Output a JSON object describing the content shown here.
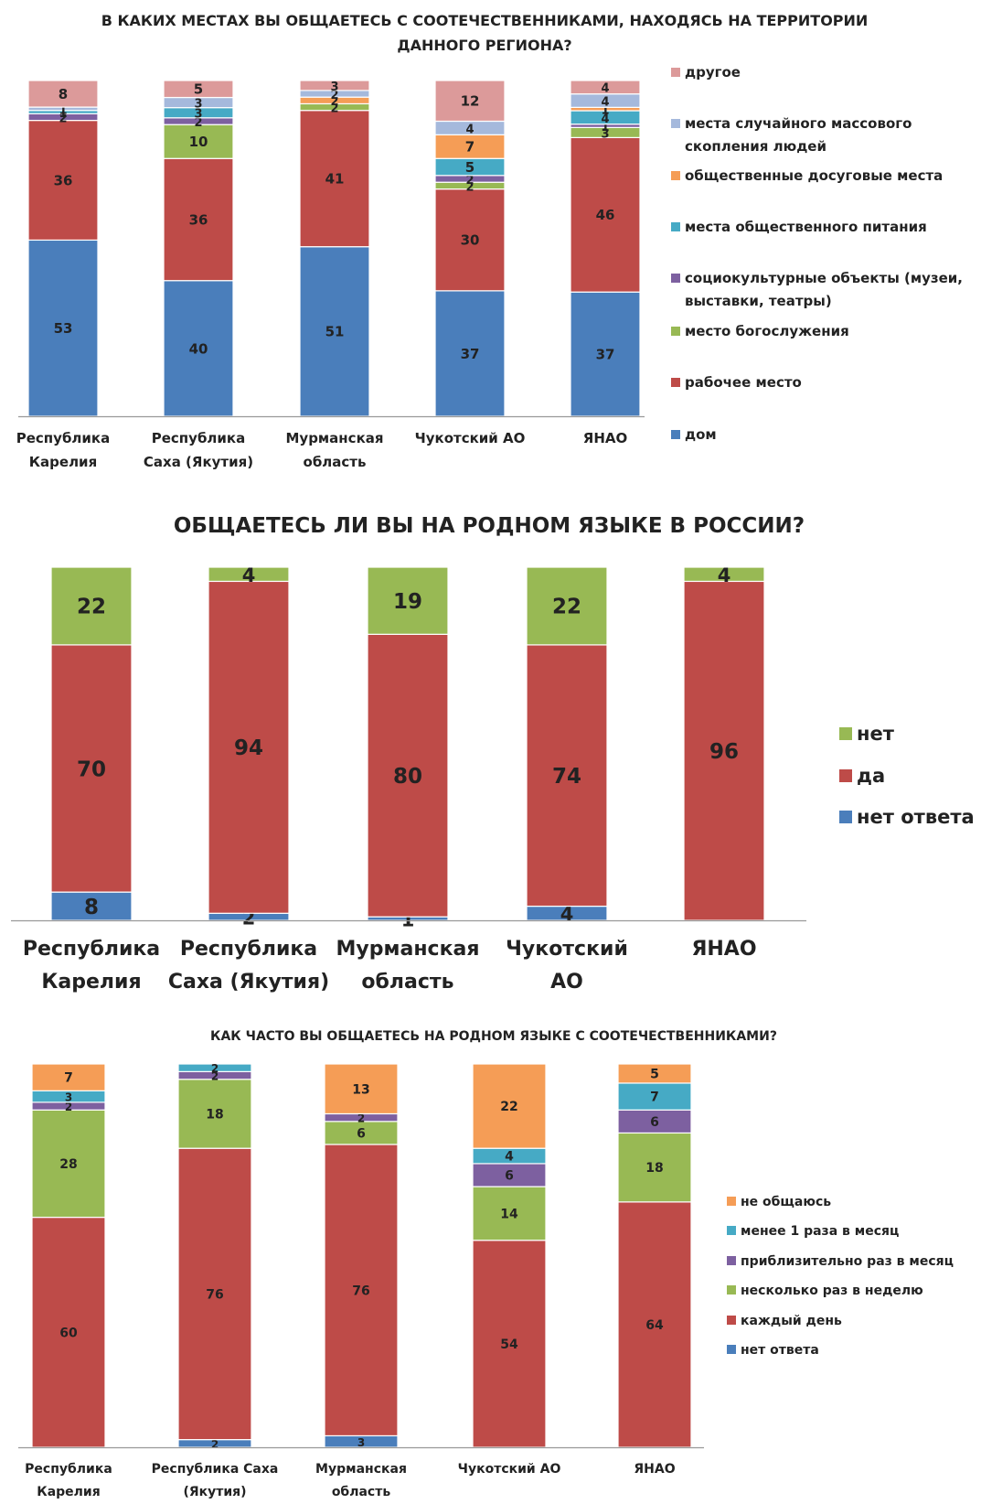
{
  "colors": {
    "dom": "#4a7ebb",
    "work": "#be4b48",
    "worship": "#98b954",
    "social": "#7d60a0",
    "food": "#46aac5",
    "leisure": "#f59d56",
    "mass": "#a5b9dc",
    "other": "#dc9a9a"
  },
  "chart_data": [
    {
      "type": "bar",
      "stacked": true,
      "title": "В КАКИХ МЕСТАХ ВЫ ОБЩАЕТЕСЬ С СООТЕЧЕСТВЕННИКАМИ, НАХОДЯСЬ НА ТЕРРИТОРИИ ДАННОГО РЕГИОНА?",
      "title_lines": [
        "В КАКИХ МЕСТАХ ВЫ ОБЩАЕТЕСЬ С СООТЕЧЕСТВЕННИКАМИ, НАХОДЯСЬ НА ТЕРРИТОРИИ",
        "ДАННОГО РЕГИОНА?"
      ],
      "categories": [
        "Республика Карелия",
        "Республика Саха (Якутия)",
        "Мурманская область",
        "Чукотский АО",
        "ЯНАО"
      ],
      "category_lines": [
        [
          "Республика",
          "Карелия"
        ],
        [
          "Республика",
          "Саха (Якутия)"
        ],
        [
          "Мурманская",
          "область"
        ],
        [
          "Чукотский АО"
        ],
        [
          "ЯНАО"
        ]
      ],
      "legend_position": "right",
      "series": [
        {
          "name": "дом",
          "color": "#4a7ebb",
          "values": [
            53,
            40,
            51,
            37,
            37
          ]
        },
        {
          "name": "рабочее место",
          "color": "#be4b48",
          "values": [
            36,
            36,
            41,
            30,
            46
          ]
        },
        {
          "name": "место богослужения",
          "color": "#98b954",
          "values": [
            0,
            10,
            2,
            2,
            3
          ]
        },
        {
          "name": "социокультурные объекты (музеи, выставки, театры)",
          "color": "#7d60a0",
          "values": [
            2,
            2,
            0,
            2,
            1
          ]
        },
        {
          "name": "места общественного питания",
          "color": "#46aac5",
          "values": [
            1,
            3,
            0,
            5,
            4
          ]
        },
        {
          "name": "общественные досуговые места",
          "color": "#f59d56",
          "values": [
            0,
            0,
            2,
            7,
            1
          ]
        },
        {
          "name": "места случайного массового скопления людей",
          "color": "#a5b9dc",
          "values": [
            1,
            3,
            2,
            4,
            4
          ]
        },
        {
          "name": "другое",
          "color": "#dc9a9a",
          "values": [
            8,
            5,
            3,
            12,
            4
          ]
        }
      ],
      "legend_lines": [
        {
          "series": "другое",
          "lines": [
            "другое"
          ]
        },
        {
          "series": "места случайного массового скопления людей",
          "lines": [
            "места случайного массового",
            "скопления людей"
          ]
        },
        {
          "series": "общественные досуговые места",
          "lines": [
            "общественные досуговые места"
          ]
        },
        {
          "series": "места общественного питания",
          "lines": [
            "места общественного питания"
          ]
        },
        {
          "series": "социокультурные объекты (музеи, выставки, театры)",
          "lines": [
            "социокультурные объекты (музеи,",
            "выставки, театры)"
          ]
        },
        {
          "series": "место богослужения",
          "lines": [
            "место богослужения"
          ]
        },
        {
          "series": "рабочее место",
          "lines": [
            "рабочее место"
          ]
        },
        {
          "series": "дом",
          "lines": [
            "дом"
          ]
        }
      ]
    },
    {
      "type": "bar",
      "stacked": true,
      "title": "ОБЩАЕТЕСЬ ЛИ ВЫ НА РОДНОМ ЯЗЫКЕ В РОССИИ?",
      "title_lines": [
        "ОБЩАЕТЕСЬ ЛИ ВЫ НА РОДНОМ ЯЗЫКЕ В РОССИИ?"
      ],
      "categories": [
        "Республика Карелия",
        "Республика Саха (Якутия)",
        "Мурманская область",
        "Чукотский АО",
        "ЯНАО"
      ],
      "category_lines": [
        [
          "Республика",
          "Карелия"
        ],
        [
          "Республика",
          "Саха (Якутия)"
        ],
        [
          "Мурманская",
          "область"
        ],
        [
          "Чукотский",
          "АО"
        ],
        [
          "ЯНАО"
        ]
      ],
      "legend_position": "right",
      "series": [
        {
          "name": "нет ответа",
          "color": "#4a7ebb",
          "values": [
            8,
            2,
            1,
            4,
            0
          ]
        },
        {
          "name": "да",
          "color": "#be4b48",
          "values": [
            70,
            94,
            80,
            74,
            96
          ]
        },
        {
          "name": "нет",
          "color": "#98b954",
          "values": [
            22,
            4,
            19,
            22,
            4
          ]
        }
      ],
      "legend_lines": [
        {
          "series": "нет",
          "lines": [
            "нет"
          ]
        },
        {
          "series": "да",
          "lines": [
            "да"
          ]
        },
        {
          "series": "нет ответа",
          "lines": [
            "нет ответа"
          ]
        }
      ]
    },
    {
      "type": "bar",
      "stacked": true,
      "title": "КАК ЧАСТО ВЫ ОБЩАЕТЕСЬ НА РОДНОМ ЯЗЫКЕ С СООТЕЧЕСТВЕННИКАМИ?",
      "title_lines": [
        "КАК ЧАСТО ВЫ ОБЩАЕТЕСЬ НА РОДНОМ ЯЗЫКЕ С СООТЕЧЕСТВЕННИКАМИ?"
      ],
      "categories": [
        "Республика Карелия",
        "Республика Саха (Якутия)",
        "Мурманская область",
        "Чукотский АО",
        "ЯНАО"
      ],
      "category_lines": [
        [
          "Республика",
          "Карелия"
        ],
        [
          "Республика Саха",
          "(Якутия)"
        ],
        [
          "Мурманская",
          "область"
        ],
        [
          "Чукотский АО"
        ],
        [
          "ЯНАО"
        ]
      ],
      "legend_position": "right",
      "series": [
        {
          "name": "нет ответа",
          "color": "#4a7ebb",
          "values": [
            0,
            2,
            3,
            0,
            0
          ]
        },
        {
          "name": "каждый день",
          "color": "#be4b48",
          "values": [
            60,
            76,
            76,
            54,
            64
          ]
        },
        {
          "name": "несколько раз в неделю",
          "color": "#98b954",
          "values": [
            28,
            18,
            6,
            14,
            18
          ]
        },
        {
          "name": "приблизительно раз в месяц",
          "color": "#7d60a0",
          "values": [
            2,
            2,
            2,
            6,
            6
          ]
        },
        {
          "name": "менее 1 раза в месяц",
          "color": "#46aac5",
          "values": [
            3,
            2,
            0,
            4,
            7
          ]
        },
        {
          "name": "не общаюсь",
          "color": "#f59d56",
          "values": [
            7,
            0,
            13,
            22,
            5
          ]
        }
      ],
      "legend_lines": [
        {
          "series": "не общаюсь",
          "lines": [
            "не общаюсь"
          ]
        },
        {
          "series": "менее 1 раза в месяц",
          "lines": [
            "менее 1 раза в месяц"
          ]
        },
        {
          "series": "приблизительно раз в месяц",
          "lines": [
            "приблизительно раз в месяц"
          ]
        },
        {
          "series": "несколько раз в неделю",
          "lines": [
            "несколько раз в неделю"
          ]
        },
        {
          "series": "каждый день",
          "lines": [
            "каждый день"
          ]
        },
        {
          "series": "нет ответа",
          "lines": [
            "нет ответа"
          ]
        }
      ]
    }
  ]
}
